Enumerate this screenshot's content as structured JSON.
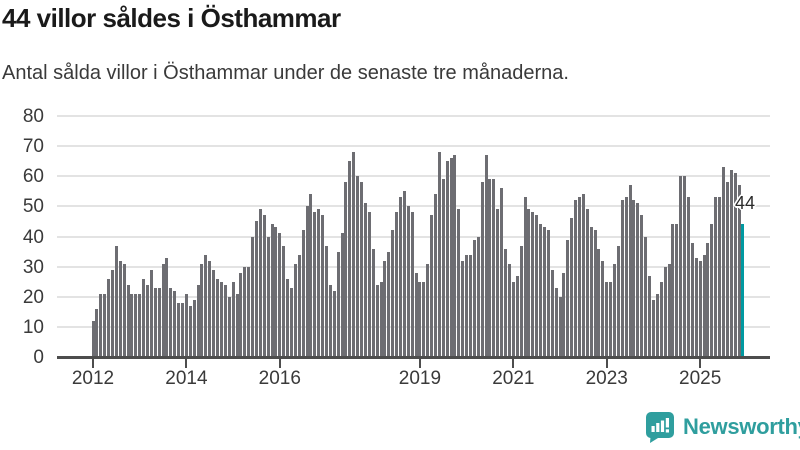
{
  "title": "44 villor såldes i Östhammar",
  "subtitle": "Antal sålda villor i Östhammar under de senaste tre månaderna.",
  "branding": {
    "name": "Newsworthy"
  },
  "colors": {
    "bar": "#6d6d72",
    "accent": "#0099a1",
    "grid": "#e3e3e3",
    "axis": "#4d4d4d",
    "title": "#1a1a1a",
    "text": "#3a3a3a",
    "brand": "#2f9e9e"
  },
  "chart_data": {
    "type": "bar",
    "title": "44 villor såldes i Östhammar",
    "subtitle": "Antal sålda villor i Östhammar under de senaste tre månaderna.",
    "unit": "sålda villor (rullande 3 månader)",
    "frequency": "monthly",
    "x_start": "2012-01",
    "x_end": "2025-12",
    "ylim": [
      0,
      80
    ],
    "yticks": [
      0,
      10,
      20,
      30,
      40,
      50,
      60,
      70,
      80
    ],
    "grid": "horizontal",
    "xticks": [
      {
        "label": "2012",
        "year_offset": 0
      },
      {
        "label": "2014",
        "year_offset": 2
      },
      {
        "label": "2016",
        "year_offset": 4
      },
      {
        "label": "2019",
        "year_offset": 7
      },
      {
        "label": "2021",
        "year_offset": 9
      },
      {
        "label": "2023",
        "year_offset": 11
      },
      {
        "label": "2025",
        "year_offset": 13
      }
    ],
    "highlight_last": true,
    "last_value_label": "44",
    "values": [
      12,
      16,
      21,
      21,
      26,
      29,
      37,
      32,
      31,
      24,
      21,
      21,
      21,
      26,
      24,
      29,
      23,
      23,
      31,
      33,
      23,
      22,
      18,
      18,
      21,
      17,
      19,
      24,
      31,
      34,
      32,
      29,
      26,
      25,
      24,
      20,
      25,
      21,
      28,
      30,
      30,
      40,
      45,
      49,
      47,
      40,
      44,
      43,
      41,
      37,
      26,
      23,
      31,
      34,
      42,
      50,
      54,
      48,
      49,
      47,
      37,
      24,
      22,
      35,
      41,
      58,
      65,
      68,
      60,
      58,
      51,
      48,
      36,
      24,
      25,
      32,
      35,
      42,
      48,
      53,
      55,
      50,
      48,
      28,
      25,
      25,
      31,
      47,
      54,
      68,
      59,
      65,
      66,
      67,
      49,
      32,
      34,
      34,
      39,
      40,
      58,
      67,
      59,
      59,
      49,
      56,
      36,
      31,
      25,
      27,
      37,
      53,
      49,
      48,
      47,
      44,
      43,
      42,
      29,
      23,
      20,
      28,
      39,
      46,
      52,
      53,
      54,
      49,
      43,
      42,
      36,
      32,
      25,
      25,
      31,
      37,
      52,
      53,
      57,
      52,
      51,
      47,
      40,
      27,
      19,
      21,
      25,
      30,
      31,
      44,
      44,
      60,
      60,
      53,
      38,
      33,
      32,
      34,
      38,
      44,
      53,
      53,
      63,
      58,
      62,
      61,
      57,
      44
    ]
  }
}
